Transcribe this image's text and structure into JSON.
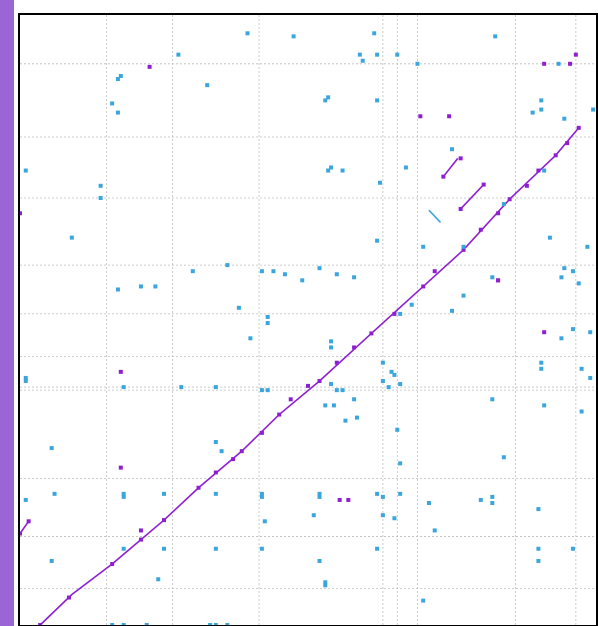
{
  "chart_data": {
    "type": "scatter",
    "title": "",
    "xlabel": "",
    "ylabel": "",
    "grid": true,
    "colors": {
      "background": "#ffffff",
      "grid": "#bdbdbd",
      "frame": "#000000",
      "page_band": "#9a66d6",
      "diagonal": "#8e1fd1",
      "match": "#8e1fd1",
      "off_diagonal": "#3aa6dd"
    },
    "x_range": [
      0,
      1
    ],
    "y_range": [
      0,
      1
    ],
    "x_grid": [
      0.15,
      0.265,
      0.415,
      0.63,
      0.655,
      0.69,
      0.86,
      0.965
    ],
    "y_grid": [
      0.06,
      0.145,
      0.24,
      0.385,
      0.39,
      0.44,
      0.51,
      0.59,
      0.7,
      0.8,
      0.92
    ],
    "series": [
      {
        "kind": "diagonal-line",
        "color": "#8e1fd1",
        "points": [
          [
            0.035,
            0.0
          ],
          [
            0.09,
            0.05
          ],
          [
            0.16,
            0.1
          ],
          [
            0.25,
            0.172
          ],
          [
            0.31,
            0.225
          ],
          [
            0.385,
            0.285
          ],
          [
            0.45,
            0.345
          ],
          [
            0.52,
            0.4
          ],
          [
            0.61,
            0.478
          ],
          [
            0.7,
            0.555
          ],
          [
            0.77,
            0.615
          ],
          [
            0.85,
            0.698
          ],
          [
            0.93,
            0.77
          ],
          [
            0.97,
            0.815
          ]
        ]
      },
      {
        "kind": "segment",
        "color": "#8e1fd1",
        "points": [
          [
            0.0,
            0.15
          ],
          [
            0.015,
            0.17
          ]
        ]
      },
      {
        "kind": "segment",
        "color": "#8e1fd1",
        "points": [
          [
            0.735,
            0.735
          ],
          [
            0.76,
            0.765
          ]
        ]
      },
      {
        "kind": "segment",
        "color": "#8e1fd1",
        "points": [
          [
            0.765,
            0.682
          ],
          [
            0.805,
            0.722
          ]
        ]
      },
      {
        "kind": "segment",
        "color": "#3aa6dd",
        "points": [
          [
            0.71,
            0.68
          ],
          [
            0.73,
            0.66
          ]
        ]
      },
      {
        "kind": "matches",
        "color": "#8e1fd1",
        "points": [
          [
            0.035,
            0.0
          ],
          [
            0.085,
            0.045
          ],
          [
            0.16,
            0.1
          ],
          [
            0.21,
            0.14
          ],
          [
            0.21,
            0.155
          ],
          [
            0.25,
            0.172
          ],
          [
            0.31,
            0.225
          ],
          [
            0.34,
            0.25
          ],
          [
            0.37,
            0.272
          ],
          [
            0.385,
            0.285
          ],
          [
            0.42,
            0.315
          ],
          [
            0.45,
            0.345
          ],
          [
            0.47,
            0.37
          ],
          [
            0.5,
            0.392
          ],
          [
            0.52,
            0.4
          ],
          [
            0.55,
            0.43
          ],
          [
            0.58,
            0.455
          ],
          [
            0.61,
            0.478
          ],
          [
            0.65,
            0.51
          ],
          [
            0.7,
            0.555
          ],
          [
            0.72,
            0.58
          ],
          [
            0.77,
            0.615
          ],
          [
            0.8,
            0.648
          ],
          [
            0.83,
            0.675
          ],
          [
            0.85,
            0.698
          ],
          [
            0.88,
            0.72
          ],
          [
            0.9,
            0.745
          ],
          [
            0.93,
            0.77
          ],
          [
            0.95,
            0.79
          ],
          [
            0.97,
            0.815
          ],
          [
            0.0,
            0.15
          ],
          [
            0.015,
            0.17
          ],
          [
            0.735,
            0.735
          ],
          [
            0.765,
            0.765
          ],
          [
            0.765,
            0.682
          ],
          [
            0.805,
            0.722
          ],
          [
            0.91,
            0.92
          ],
          [
            0.955,
            0.92
          ],
          [
            0.965,
            0.935
          ],
          [
            0.83,
            0.565
          ],
          [
            0.83,
            0.565
          ],
          [
            0.91,
            0.48
          ],
          [
            0.555,
            0.205
          ],
          [
            0.57,
            0.205
          ],
          [
            0.225,
            0.915
          ],
          [
            0.0,
            0.675
          ],
          [
            0.175,
            0.415
          ],
          [
            0.175,
            0.258
          ],
          [
            0.695,
            0.834
          ],
          [
            0.745,
            0.834
          ]
        ]
      },
      {
        "kind": "off-diagonal",
        "color": "#3aa6dd",
        "points": [
          [
            0.175,
            0.9
          ],
          [
            0.275,
            0.935
          ],
          [
            0.325,
            0.885
          ],
          [
            0.395,
            0.97
          ],
          [
            0.475,
            0.965
          ],
          [
            0.615,
            0.97
          ],
          [
            0.825,
            0.965
          ],
          [
            0.59,
            0.935
          ],
          [
            0.62,
            0.935
          ],
          [
            0.655,
            0.935
          ],
          [
            0.595,
            0.925
          ],
          [
            0.69,
            0.92
          ],
          [
            0.935,
            0.92
          ],
          [
            0.17,
            0.895
          ],
          [
            0.16,
            0.855
          ],
          [
            0.17,
            0.84
          ],
          [
            0.53,
            0.86
          ],
          [
            0.535,
            0.865
          ],
          [
            0.62,
            0.86
          ],
          [
            0.905,
            0.86
          ],
          [
            0.89,
            0.84
          ],
          [
            0.905,
            0.845
          ],
          [
            0.945,
            0.83
          ],
          [
            0.01,
            0.745
          ],
          [
            0.14,
            0.72
          ],
          [
            0.14,
            0.7
          ],
          [
            0.535,
            0.745
          ],
          [
            0.54,
            0.75
          ],
          [
            0.56,
            0.745
          ],
          [
            0.625,
            0.725
          ],
          [
            0.67,
            0.75
          ],
          [
            0.75,
            0.78
          ],
          [
            0.91,
            0.745
          ],
          [
            0.995,
            0.845
          ],
          [
            0.09,
            0.635
          ],
          [
            0.3,
            0.58
          ],
          [
            0.17,
            0.55
          ],
          [
            0.21,
            0.555
          ],
          [
            0.235,
            0.555
          ],
          [
            0.55,
            0.575
          ],
          [
            0.58,
            0.57
          ],
          [
            0.36,
            0.59
          ],
          [
            0.42,
            0.58
          ],
          [
            0.44,
            0.58
          ],
          [
            0.46,
            0.575
          ],
          [
            0.49,
            0.565
          ],
          [
            0.52,
            0.585
          ],
          [
            0.62,
            0.63
          ],
          [
            0.7,
            0.62
          ],
          [
            0.77,
            0.62
          ],
          [
            0.82,
            0.57
          ],
          [
            0.84,
            0.69
          ],
          [
            0.92,
            0.635
          ],
          [
            0.94,
            0.57
          ],
          [
            0.945,
            0.585
          ],
          [
            0.96,
            0.58
          ],
          [
            0.985,
            0.62
          ],
          [
            0.97,
            0.56
          ],
          [
            0.77,
            0.54
          ],
          [
            0.75,
            0.515
          ],
          [
            0.68,
            0.525
          ],
          [
            0.66,
            0.51
          ],
          [
            0.38,
            0.52
          ],
          [
            0.43,
            0.505
          ],
          [
            0.43,
            0.495
          ],
          [
            0.4,
            0.47
          ],
          [
            0.54,
            0.465
          ],
          [
            0.54,
            0.455
          ],
          [
            0.63,
            0.43
          ],
          [
            0.65,
            0.41
          ],
          [
            0.94,
            0.47
          ],
          [
            0.96,
            0.485
          ],
          [
            0.99,
            0.48
          ],
          [
            0.905,
            0.43
          ],
          [
            0.905,
            0.42
          ],
          [
            0.975,
            0.42
          ],
          [
            0.99,
            0.405
          ],
          [
            0.01,
            0.405
          ],
          [
            0.01,
            0.4
          ],
          [
            0.18,
            0.39
          ],
          [
            0.28,
            0.39
          ],
          [
            0.34,
            0.39
          ],
          [
            0.42,
            0.385
          ],
          [
            0.43,
            0.385
          ],
          [
            0.54,
            0.395
          ],
          [
            0.55,
            0.385
          ],
          [
            0.56,
            0.385
          ],
          [
            0.58,
            0.37
          ],
          [
            0.63,
            0.4
          ],
          [
            0.64,
            0.39
          ],
          [
            0.66,
            0.395
          ],
          [
            0.645,
            0.415
          ],
          [
            0.53,
            0.36
          ],
          [
            0.545,
            0.36
          ],
          [
            0.565,
            0.335
          ],
          [
            0.585,
            0.34
          ],
          [
            0.655,
            0.32
          ],
          [
            0.82,
            0.37
          ],
          [
            0.91,
            0.36
          ],
          [
            0.975,
            0.35
          ],
          [
            0.055,
            0.29
          ],
          [
            0.34,
            0.3
          ],
          [
            0.35,
            0.285
          ],
          [
            0.66,
            0.265
          ],
          [
            0.84,
            0.275
          ],
          [
            0.06,
            0.215
          ],
          [
            0.18,
            0.215
          ],
          [
            0.25,
            0.215
          ],
          [
            0.34,
            0.215
          ],
          [
            0.42,
            0.215
          ],
          [
            0.52,
            0.215
          ],
          [
            0.62,
            0.215
          ],
          [
            0.66,
            0.215
          ],
          [
            0.01,
            0.205
          ],
          [
            0.18,
            0.21
          ],
          [
            0.42,
            0.21
          ],
          [
            0.52,
            0.21
          ],
          [
            0.63,
            0.21
          ],
          [
            0.71,
            0.2
          ],
          [
            0.8,
            0.205
          ],
          [
            0.82,
            0.21
          ],
          [
            0.82,
            0.2
          ],
          [
            0.9,
            0.19
          ],
          [
            0.51,
            0.18
          ],
          [
            0.63,
            0.18
          ],
          [
            0.65,
            0.175
          ],
          [
            0.72,
            0.155
          ],
          [
            0.425,
            0.17
          ],
          [
            0.055,
            0.105
          ],
          [
            0.18,
            0.125
          ],
          [
            0.25,
            0.125
          ],
          [
            0.34,
            0.125
          ],
          [
            0.42,
            0.125
          ],
          [
            0.52,
            0.105
          ],
          [
            0.62,
            0.125
          ],
          [
            0.9,
            0.105
          ],
          [
            0.9,
            0.125
          ],
          [
            0.96,
            0.125
          ],
          [
            0.24,
            0.075
          ],
          [
            0.53,
            0.065
          ],
          [
            0.53,
            0.07
          ],
          [
            0.7,
            0.04
          ],
          [
            0.16,
            0.0
          ],
          [
            0.18,
            0.0
          ],
          [
            0.22,
            0.0
          ],
          [
            0.33,
            0.0
          ],
          [
            0.34,
            0.0
          ],
          [
            0.36,
            0.0
          ]
        ]
      }
    ]
  }
}
